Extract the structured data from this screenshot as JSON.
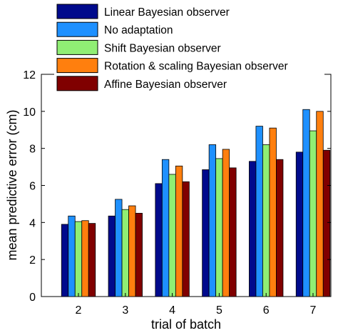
{
  "chart_data": {
    "type": "bar",
    "xlabel": "trial of batch",
    "ylabel": "mean predictive error (cm)",
    "categories": [
      "2",
      "3",
      "4",
      "5",
      "6",
      "7"
    ],
    "ylim": [
      0,
      12
    ],
    "yticks": [
      "0",
      "2",
      "4",
      "6",
      "8",
      "10",
      "12"
    ],
    "legend_position": "top-right",
    "series": [
      {
        "name": "Linear Bayesian observer",
        "color": "#000a8c",
        "values": [
          3.9,
          4.35,
          6.1,
          6.85,
          7.3,
          7.8
        ]
      },
      {
        "name": "No adaptation",
        "color": "#1e90ff",
        "values": [
          4.35,
          5.25,
          7.4,
          8.2,
          9.2,
          10.1
        ]
      },
      {
        "name": "Shift Bayesian observer",
        "color": "#90ee74",
        "values": [
          4.05,
          4.7,
          6.6,
          7.45,
          8.2,
          8.95
        ]
      },
      {
        "name": "Rotation & scaling Bayesian observer",
        "color": "#ff7f0e",
        "values": [
          4.1,
          4.9,
          7.05,
          7.95,
          9.1,
          10.0
        ]
      },
      {
        "name": "Affine Bayesian observer",
        "color": "#800000",
        "values": [
          3.95,
          4.5,
          6.2,
          6.95,
          7.4,
          7.9
        ]
      }
    ]
  }
}
